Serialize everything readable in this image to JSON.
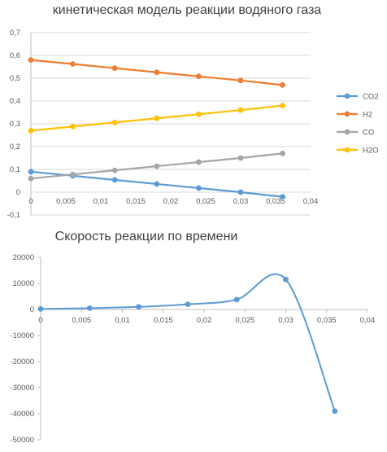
{
  "chart_data": [
    {
      "type": "line",
      "title": "кинетическая модель реакции водяного газа",
      "xlabel": "",
      "ylabel": "",
      "xlim": [
        0,
        0.04
      ],
      "ylim": [
        -0.1,
        0.7
      ],
      "x_ticks": [
        "0",
        "0,005",
        "0,01",
        "0,015",
        "0,02",
        "0,025",
        "0,03",
        "0,035",
        "0,04"
      ],
      "y_ticks": [
        "-0,1",
        "0",
        "0,1",
        "0,2",
        "0,3",
        "0,4",
        "0,5",
        "0,6",
        "0,7"
      ],
      "grid": "horizontal",
      "legend": "right",
      "x": [
        0,
        0.006,
        0.012,
        0.018,
        0.024,
        0.03,
        0.036
      ],
      "series": [
        {
          "name": "CO2",
          "color": "#5b9bd5",
          "values": [
            0.09,
            0.072,
            0.054,
            0.036,
            0.018,
            0.0,
            -0.02
          ]
        },
        {
          "name": "H2",
          "color": "#ed7d31",
          "values": [
            0.58,
            0.562,
            0.544,
            0.526,
            0.508,
            0.49,
            0.47
          ]
        },
        {
          "name": "CO",
          "color": "#a5a5a5",
          "values": [
            0.06,
            0.078,
            0.096,
            0.114,
            0.132,
            0.15,
            0.17
          ]
        },
        {
          "name": "H2O",
          "color": "#ffc000",
          "values": [
            0.27,
            0.288,
            0.306,
            0.324,
            0.342,
            0.36,
            0.38
          ]
        }
      ]
    },
    {
      "type": "line",
      "title": "Скорость реакции по времени",
      "xlabel": "",
      "ylabel": "",
      "xlim": [
        0,
        0.04
      ],
      "ylim": [
        -50000,
        20000
      ],
      "x_ticks": [
        "0",
        "0,005",
        "0,01",
        "0,015",
        "0,02",
        "0,025",
        "0,03",
        "0,035",
        "0,04"
      ],
      "y_ticks": [
        "-50000",
        "-40000",
        "-30000",
        "-20000",
        "-10000",
        "0",
        "10000",
        "20000"
      ],
      "grid": "none",
      "legend": "none",
      "smooth": true,
      "x": [
        0,
        0.006,
        0.012,
        0.018,
        0.024,
        0.03,
        0.036
      ],
      "series": [
        {
          "name": "",
          "color": "#5b9bd5",
          "values": [
            200,
            500,
            1000,
            2000,
            3800,
            11500,
            -39000
          ]
        }
      ]
    }
  ]
}
